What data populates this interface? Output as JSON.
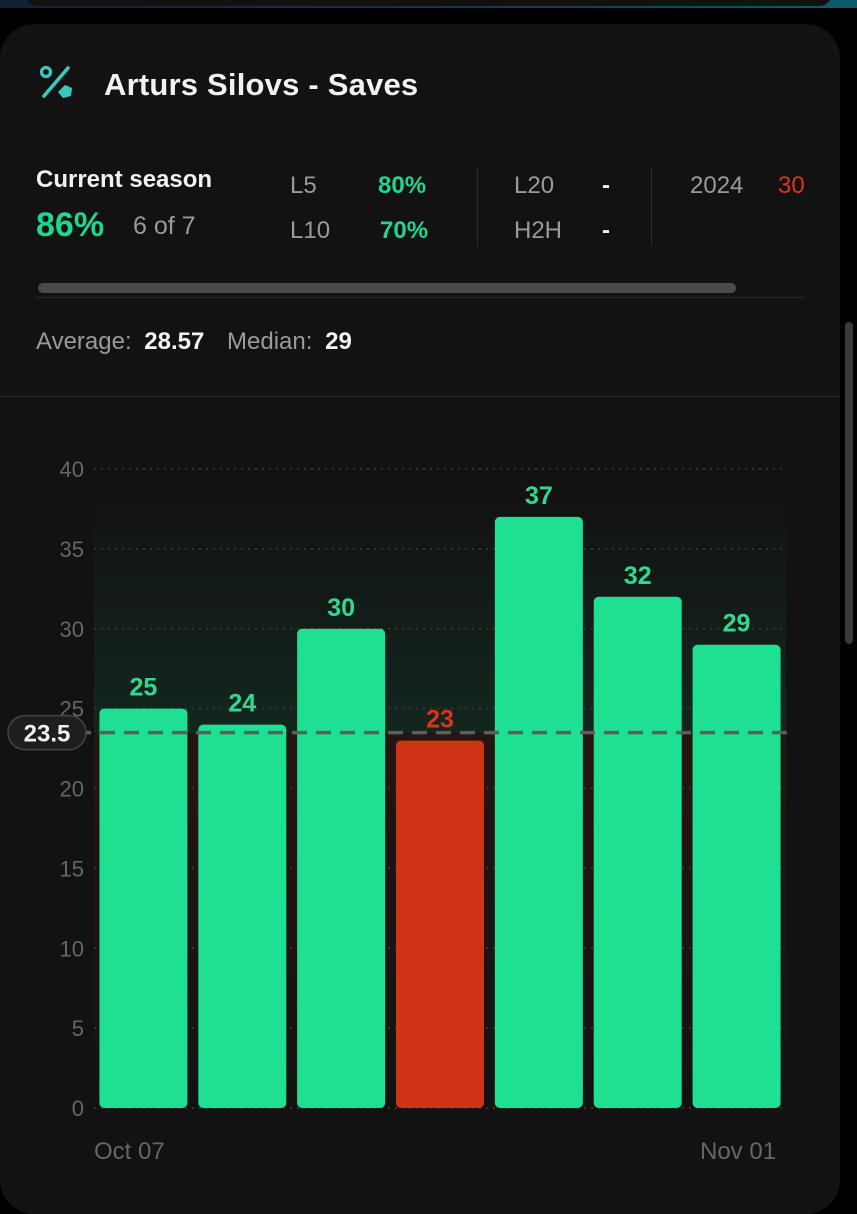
{
  "header": {
    "icon": "percent-icon",
    "title": "Arturs Silovs - Saves"
  },
  "season": {
    "label": "Current season",
    "percent": "86%",
    "count": "6 of 7"
  },
  "stats": {
    "l5_label": "L5",
    "l5_value": "80%",
    "l10_label": "L10",
    "l10_value": "70%",
    "l20_label": "L20",
    "l20_value": "-",
    "h2h_label": "H2H",
    "h2h_value": "-",
    "y2024_label": "2024",
    "y2024_value": "30"
  },
  "summary": {
    "average_label": "Average:",
    "average_value": "28.57",
    "median_label": "Median:",
    "median_value": "29"
  },
  "colors": {
    "over": "#1edf92",
    "under": "#cf3416",
    "over_text": "#2fd98f",
    "under_text": "#d9351a"
  },
  "chart_data": {
    "type": "bar",
    "values": [
      25,
      24,
      30,
      23,
      37,
      32,
      29
    ],
    "line": 23.5,
    "line_label": "23.5",
    "ylim": [
      0,
      40
    ],
    "yticks": [
      0,
      5,
      10,
      15,
      20,
      25,
      30,
      35,
      40
    ],
    "x_first_label": "Oct 07",
    "x_last_label": "Nov 01",
    "grid": "dotted horizontal",
    "legend": "none"
  }
}
